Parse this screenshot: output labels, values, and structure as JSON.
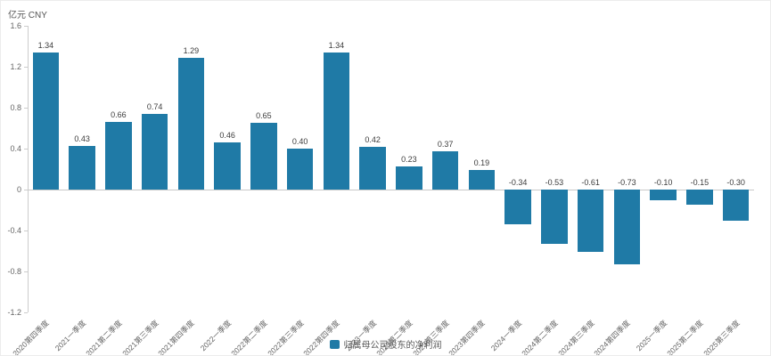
{
  "unit_label": "亿元 CNY",
  "chart_data": {
    "type": "bar",
    "title": "",
    "xlabel": "",
    "ylabel": "亿元 CNY",
    "ylim": [
      -1.2,
      1.6
    ],
    "y_ticks": [
      "1.6",
      "1.2",
      "0.8",
      "0.4",
      "0",
      "-0.4",
      "-0.8",
      "-1.2"
    ],
    "grid": false,
    "legend_position": "bottom-center",
    "categories": [
      "2020第四季度",
      "2021一季度",
      "2021第二季度",
      "2021第三季度",
      "2021第四季度",
      "2022一季度",
      "2022第二季度",
      "2022第三季度",
      "2022第四季度",
      "2023一季度",
      "2023第二季度",
      "2023第三季度",
      "2023第四季度",
      "2024一季度",
      "2024第二季度",
      "2024第三季度",
      "2024第四季度",
      "2025一季度",
      "2025第二季度",
      "2025第三季度"
    ],
    "series": [
      {
        "name": "归属母公司股东的净利润",
        "color": "#1f7aa6",
        "values": [
          1.34,
          0.43,
          0.66,
          0.74,
          1.29,
          0.46,
          0.65,
          0.4,
          1.34,
          0.42,
          0.23,
          0.37,
          0.19,
          -0.34,
          -0.53,
          -0.61,
          -0.73,
          -0.1,
          -0.15,
          -0.3
        ],
        "labels": [
          "1.34",
          "0.43",
          "0.66",
          "0.74",
          "1.29",
          "0.46",
          "0.65",
          "0.40",
          "1.34",
          "0.42",
          "0.23",
          "0.37",
          "0.19",
          "-0.34",
          "-0.53",
          "-0.61",
          "-0.73",
          "-0.10",
          "-0.15",
          "-0.30"
        ]
      }
    ]
  }
}
